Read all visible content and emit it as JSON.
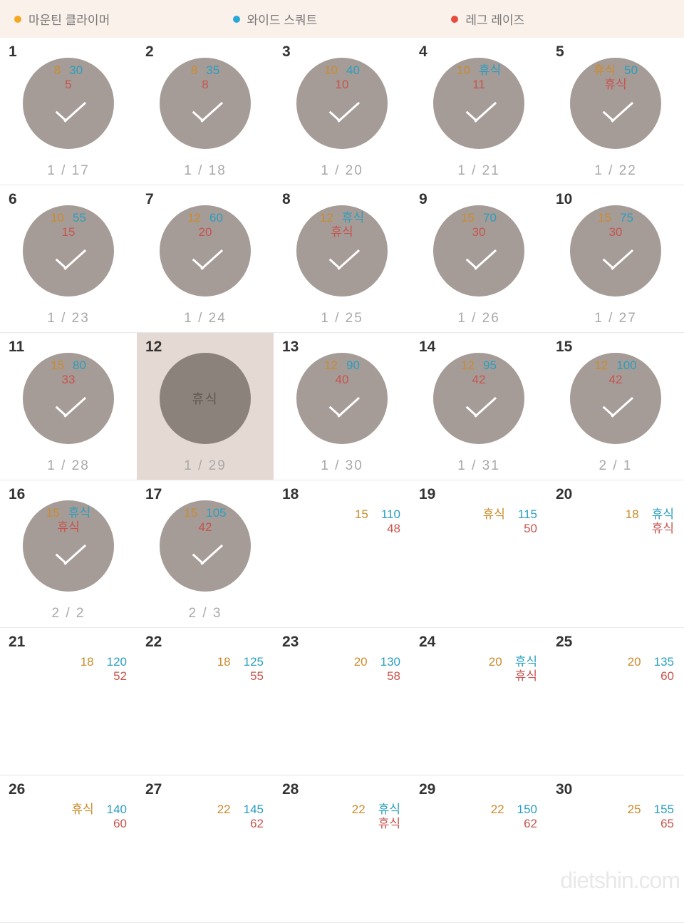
{
  "legend": {
    "items": [
      {
        "label": "마운틴 클라이머",
        "color": "#f5a623"
      },
      {
        "label": "와이드 스쿼트",
        "color": "#2aa7d8"
      },
      {
        "label": "레그 레이즈",
        "color": "#e74c3c"
      }
    ]
  },
  "colors": {
    "v1": "#cc8b2c",
    "v2": "#2a9fbf",
    "v3": "#c8544e",
    "circle": "#a59b97",
    "circle_dark": "#8c827c",
    "highlight_bg": "#e5d9d4",
    "legend_bg": "#fbf1eb",
    "border": "#e9e9e9"
  },
  "watermark": {
    "text_a": "dietshin",
    "text_b": ".com"
  },
  "days": [
    {
      "n": "1",
      "circle": true,
      "v1": "8",
      "v2": "30",
      "v3": "5",
      "date": "1 / 17"
    },
    {
      "n": "2",
      "circle": true,
      "v1": "8",
      "v2": "35",
      "v3": "8",
      "date": "1 / 18"
    },
    {
      "n": "3",
      "circle": true,
      "v1": "10",
      "v2": "40",
      "v3": "10",
      "date": "1 / 20"
    },
    {
      "n": "4",
      "circle": true,
      "v1": "10",
      "v2": "휴식",
      "v3": "11",
      "date": "1 / 21"
    },
    {
      "n": "5",
      "circle": true,
      "v1": "휴식",
      "v2": "50",
      "v3": "휴식",
      "date": "1 / 22"
    },
    {
      "n": "6",
      "circle": true,
      "v1": "10",
      "v2": "55",
      "v3": "15",
      "date": "1 / 23"
    },
    {
      "n": "7",
      "circle": true,
      "v1": "12",
      "v2": "60",
      "v3": "20",
      "date": "1 / 24"
    },
    {
      "n": "8",
      "circle": true,
      "v1": "12",
      "v2": "휴식",
      "v3": "휴식",
      "date": "1 / 25"
    },
    {
      "n": "9",
      "circle": true,
      "v1": "15",
      "v2": "70",
      "v3": "30",
      "date": "1 / 26"
    },
    {
      "n": "10",
      "circle": true,
      "v1": "15",
      "v2": "75",
      "v3": "30",
      "date": "1 / 27"
    },
    {
      "n": "11",
      "circle": true,
      "v1": "15",
      "v2": "80",
      "v3": "33",
      "date": "1 / 28"
    },
    {
      "n": "12",
      "circle": true,
      "rest": true,
      "highlight": true,
      "rest_label": "휴식",
      "date": "1 / 29"
    },
    {
      "n": "13",
      "circle": true,
      "v1": "12",
      "v2": "90",
      "v3": "40",
      "date": "1 / 30"
    },
    {
      "n": "14",
      "circle": true,
      "v1": "12",
      "v2": "95",
      "v3": "42",
      "date": "1 / 31"
    },
    {
      "n": "15",
      "circle": true,
      "v1": "12",
      "v2": "100",
      "v3": "42",
      "date": "2 / 1"
    },
    {
      "n": "16",
      "circle": true,
      "v1": "15",
      "v2": "휴식",
      "v3": "휴식",
      "date": "2 / 2"
    },
    {
      "n": "17",
      "circle": true,
      "v1": "15",
      "v2": "105",
      "v3": "42",
      "date": "2 / 3"
    },
    {
      "n": "18",
      "circle": false,
      "v1": "15",
      "v2": "110",
      "v3": "48"
    },
    {
      "n": "19",
      "circle": false,
      "v1": "휴식",
      "v2": "115",
      "v3": "50"
    },
    {
      "n": "20",
      "circle": false,
      "v1": "18",
      "v2": "휴식",
      "v3": "휴식"
    },
    {
      "n": "21",
      "circle": false,
      "v1": "18",
      "v2": "120",
      "v3": "52"
    },
    {
      "n": "22",
      "circle": false,
      "v1": "18",
      "v2": "125",
      "v3": "55"
    },
    {
      "n": "23",
      "circle": false,
      "v1": "20",
      "v2": "130",
      "v3": "58"
    },
    {
      "n": "24",
      "circle": false,
      "v1": "20",
      "v2": "휴식",
      "v3": "휴식"
    },
    {
      "n": "25",
      "circle": false,
      "v1": "20",
      "v2": "135",
      "v3": "60"
    },
    {
      "n": "26",
      "circle": false,
      "v1": "휴식",
      "v2": "140",
      "v3": "60"
    },
    {
      "n": "27",
      "circle": false,
      "v1": "22",
      "v2": "145",
      "v3": "62"
    },
    {
      "n": "28",
      "circle": false,
      "v1": "22",
      "v2": "휴식",
      "v3": "휴식"
    },
    {
      "n": "29",
      "circle": false,
      "v1": "22",
      "v2": "150",
      "v3": "62"
    },
    {
      "n": "30",
      "circle": false,
      "v1": "25",
      "v2": "155",
      "v3": "65",
      "watermark": true
    }
  ]
}
